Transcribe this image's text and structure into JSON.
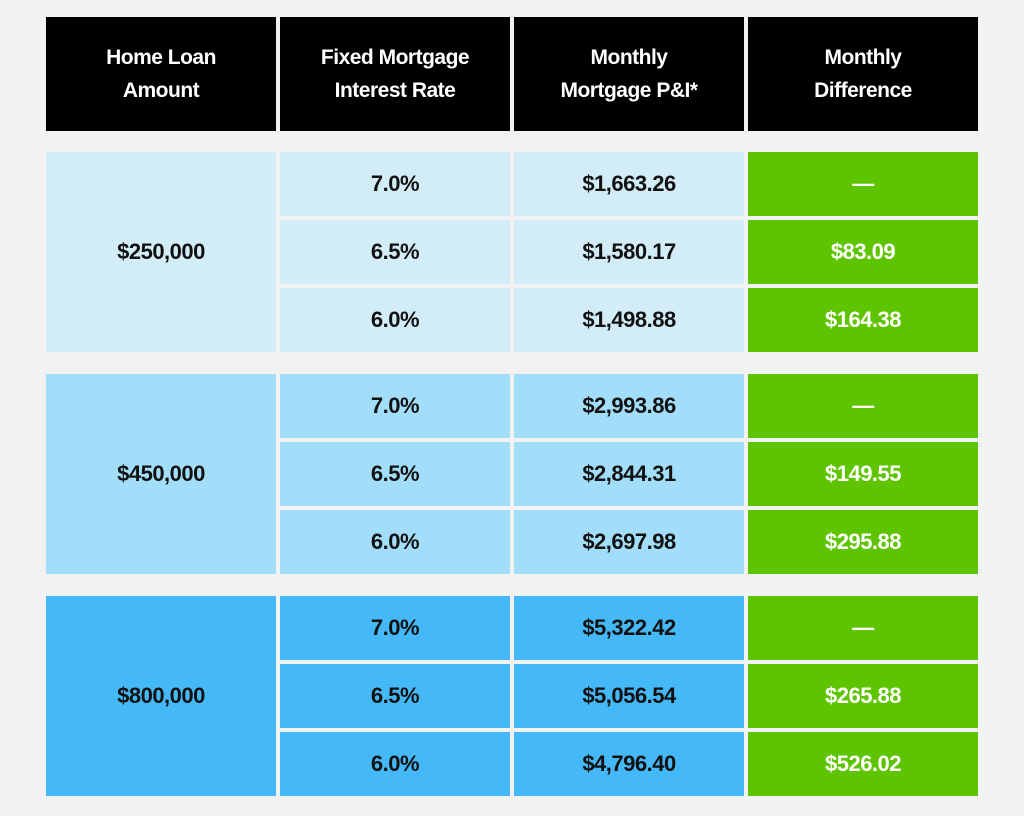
{
  "header": [
    [
      "Home Loan",
      "Amount"
    ],
    [
      "Fixed Mortgage",
      "Interest Rate"
    ],
    [
      "Monthly",
      "Mortgage P&I*"
    ],
    [
      "Monthly",
      "Difference"
    ]
  ],
  "groups": [
    {
      "amount": "$250,000",
      "rows": [
        [
          "7.0%",
          "$1,663.26",
          "—"
        ],
        [
          "6.5%",
          "$1,580.17",
          "$83.09"
        ],
        [
          "6.0%",
          "$1,498.88",
          "$164.38"
        ]
      ]
    },
    {
      "amount": "$450,000",
      "rows": [
        [
          "7.0%",
          "$2,993.86",
          "—"
        ],
        [
          "6.5%",
          "$2,844.31",
          "$149.55"
        ],
        [
          "6.0%",
          "$2,697.98",
          "$295.88"
        ]
      ]
    },
    {
      "amount": "$800,000",
      "rows": [
        [
          "7.0%",
          "$5,322.42",
          "—"
        ],
        [
          "6.5%",
          "$5,056.54",
          "$265.88"
        ],
        [
          "6.0%",
          "$4,796.40",
          "$526.02"
        ]
      ]
    }
  ]
}
